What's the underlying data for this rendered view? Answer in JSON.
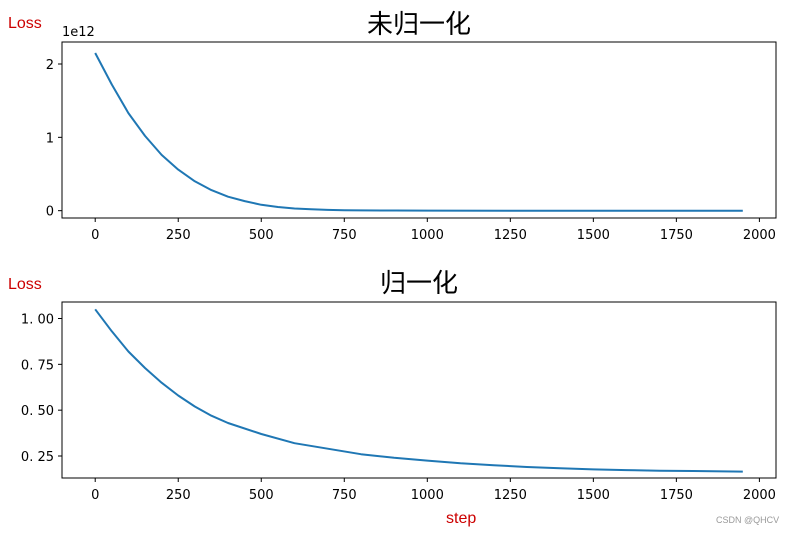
{
  "annotations": {
    "top_ylabel": "Loss",
    "bottom_ylabel": "Loss",
    "xlabel": "step",
    "watermark": "CSDN @QHCV",
    "label_color": "#cc0000"
  },
  "chart_data": [
    {
      "type": "line",
      "title": "未归一化",
      "xlabel": "",
      "ylabel": "",
      "offset_text": "1e12",
      "xlim": [
        -100,
        2050
      ],
      "ylim": [
        -0.1,
        2.3
      ],
      "xticks": [
        0,
        250,
        500,
        750,
        1000,
        1250,
        1500,
        1750,
        2000
      ],
      "yticks": [
        0,
        1,
        2
      ],
      "ytick_labels": [
        "0",
        "1",
        "2"
      ],
      "grid": false,
      "line_color": "#1f77b4",
      "series": [
        {
          "x": [
            0,
            50,
            100,
            150,
            200,
            250,
            300,
            350,
            400,
            450,
            500,
            550,
            600,
            650,
            700,
            750,
            800,
            900,
            1000,
            1250,
            1500,
            1750,
            1950
          ],
          "values": [
            2.15,
            1.72,
            1.33,
            1.02,
            0.76,
            0.56,
            0.4,
            0.28,
            0.19,
            0.13,
            0.08,
            0.05,
            0.03,
            0.018,
            0.01,
            0.006,
            0.004,
            0.002,
            0.001,
            0,
            0,
            0,
            0
          ]
        }
      ]
    },
    {
      "type": "line",
      "title": "归一化",
      "xlabel": "",
      "ylabel": "",
      "xlim": [
        -100,
        2050
      ],
      "ylim": [
        0.13,
        1.09
      ],
      "xticks": [
        0,
        250,
        500,
        750,
        1000,
        1250,
        1500,
        1750,
        2000
      ],
      "yticks": [
        0.25,
        0.5,
        0.75,
        1.0
      ],
      "ytick_labels": [
        "0. 25",
        "0. 50",
        "0. 75",
        "1. 00"
      ],
      "grid": false,
      "line_color": "#1f77b4",
      "series": [
        {
          "x": [
            0,
            50,
            100,
            150,
            200,
            250,
            300,
            350,
            400,
            500,
            600,
            700,
            800,
            900,
            1000,
            1100,
            1200,
            1300,
            1400,
            1500,
            1600,
            1700,
            1800,
            1950
          ],
          "values": [
            1.05,
            0.93,
            0.82,
            0.73,
            0.65,
            0.58,
            0.52,
            0.47,
            0.43,
            0.37,
            0.32,
            0.29,
            0.26,
            0.24,
            0.225,
            0.21,
            0.2,
            0.19,
            0.183,
            0.177,
            0.173,
            0.17,
            0.168,
            0.165
          ]
        }
      ]
    }
  ]
}
